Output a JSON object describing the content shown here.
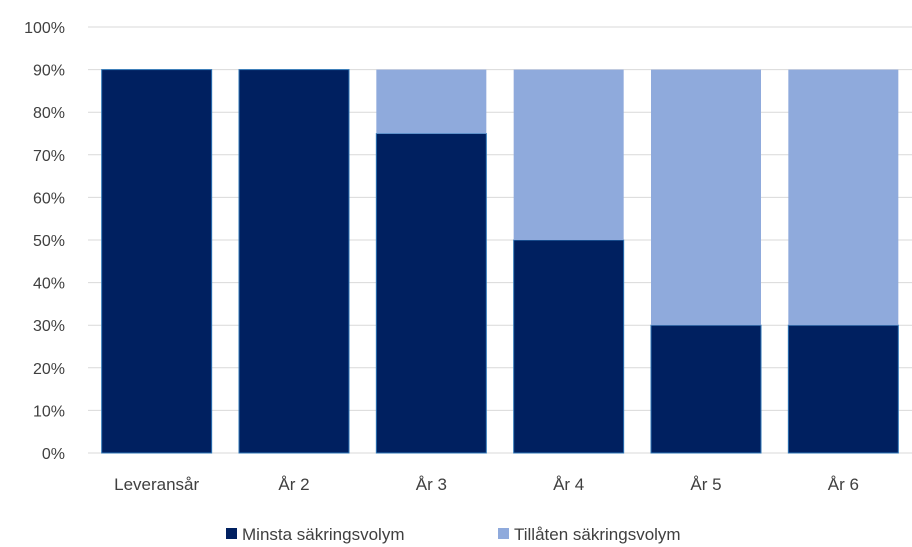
{
  "chart_data": {
    "type": "bar",
    "stacked": true,
    "categories": [
      "Leveransår",
      "År 2",
      "År 3",
      "År 4",
      "År 5",
      "År 6"
    ],
    "series": [
      {
        "name": "Minsta säkringsvolym",
        "values": [
          90,
          90,
          75,
          50,
          30,
          30
        ]
      },
      {
        "name": "Tillåten säkringsvolym",
        "values": [
          0,
          0,
          15,
          40,
          60,
          60
        ]
      }
    ],
    "title": "",
    "xlabel": "",
    "ylabel": "",
    "ylim": [
      0,
      100
    ],
    "y_ticks": [
      "0%",
      "10%",
      "20%",
      "30%",
      "40%",
      "50%",
      "60%",
      "70%",
      "80%",
      "90%",
      "100%"
    ],
    "grid": true,
    "legend_position": "bottom",
    "colors": {
      "minsta": "#002060",
      "tillaten": "#8faadc",
      "bar_border": "#2e75b6"
    }
  }
}
